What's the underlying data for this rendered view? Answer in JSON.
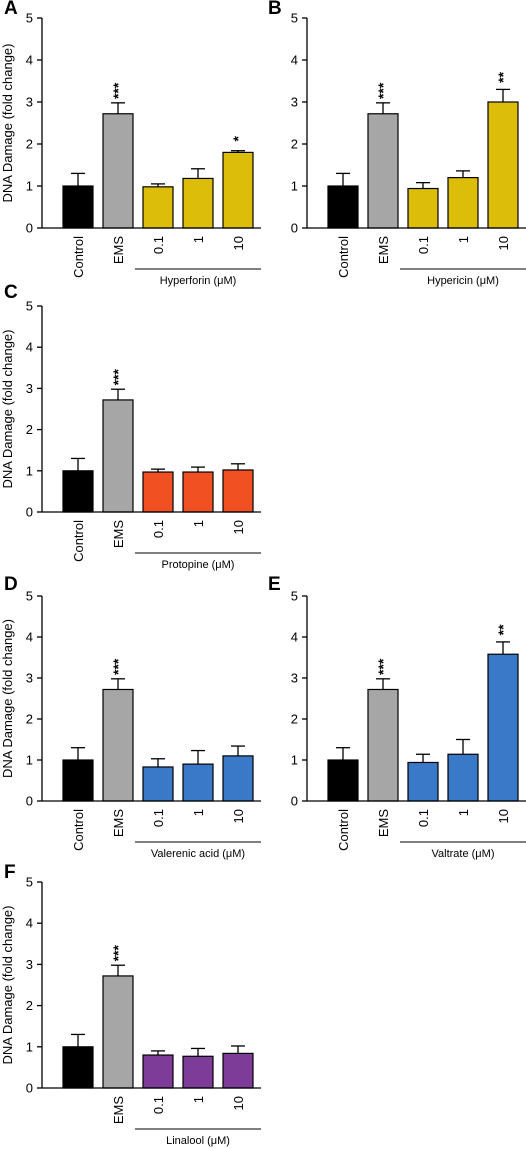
{
  "chart_data": [
    {
      "panel": "A",
      "type": "bar",
      "ylabel": "DNA Damage (fold change)",
      "ylim": [
        0,
        5
      ],
      "yticks": [
        "0",
        "1",
        "2",
        "3",
        "4",
        "5"
      ],
      "categories": [
        "Control",
        "EMS",
        "0.1",
        "1",
        "10"
      ],
      "values": [
        1.0,
        2.72,
        0.98,
        1.18,
        1.8
      ],
      "errors": [
        0.3,
        0.26,
        0.07,
        0.23,
        0.04
      ],
      "colors": [
        "#000000",
        "#a6a6a6",
        "#dcbe0a",
        "#dcbe0a",
        "#dcbe0a"
      ],
      "significance": [
        "",
        "***",
        "",
        "",
        "*"
      ],
      "group_label": "Hyperforin (μM)"
    },
    {
      "panel": "B",
      "type": "bar",
      "ylabel": "",
      "ylim": [
        0,
        5
      ],
      "yticks": [
        "0",
        "1",
        "2",
        "3",
        "4",
        "5"
      ],
      "categories": [
        "Control",
        "EMS",
        "0.1",
        "1",
        "10"
      ],
      "values": [
        1.0,
        2.72,
        0.94,
        1.2,
        3.0
      ],
      "errors": [
        0.3,
        0.26,
        0.14,
        0.16,
        0.3
      ],
      "colors": [
        "#000000",
        "#a6a6a6",
        "#dcbe0a",
        "#dcbe0a",
        "#dcbe0a"
      ],
      "significance": [
        "",
        "***",
        "",
        "",
        "**"
      ],
      "group_label": "Hypericin (μM)"
    },
    {
      "panel": "C",
      "type": "bar",
      "ylabel": "DNA Damage (fold change)",
      "ylim": [
        0,
        5
      ],
      "yticks": [
        "0",
        "1",
        "2",
        "3",
        "4",
        "5"
      ],
      "categories": [
        "Control",
        "EMS",
        "0.1",
        "1",
        "10"
      ],
      "values": [
        1.0,
        2.72,
        0.97,
        0.97,
        1.02
      ],
      "errors": [
        0.3,
        0.26,
        0.07,
        0.12,
        0.15
      ],
      "colors": [
        "#000000",
        "#a6a6a6",
        "#f05022",
        "#f05022",
        "#f05022"
      ],
      "significance": [
        "",
        "***",
        "",
        "",
        ""
      ],
      "group_label": "Protopine (μM)"
    },
    {
      "panel": "D",
      "type": "bar",
      "ylabel": "DNA Damage (fold change)",
      "ylim": [
        0,
        5
      ],
      "yticks": [
        "0",
        "1",
        "2",
        "3",
        "4",
        "5"
      ],
      "categories": [
        "Control",
        "EMS",
        "0.1",
        "1",
        "10"
      ],
      "values": [
        1.0,
        2.72,
        0.83,
        0.9,
        1.1
      ],
      "errors": [
        0.3,
        0.26,
        0.2,
        0.33,
        0.24
      ],
      "colors": [
        "#000000",
        "#a6a6a6",
        "#3a78c8",
        "#3a78c8",
        "#3a78c8"
      ],
      "significance": [
        "",
        "***",
        "",
        "",
        ""
      ],
      "group_label": "Valerenic acid (μM)"
    },
    {
      "panel": "E",
      "type": "bar",
      "ylabel": "",
      "ylim": [
        0,
        5
      ],
      "yticks": [
        "0",
        "1",
        "2",
        "3",
        "4",
        "5"
      ],
      "categories": [
        "Control",
        "EMS",
        "0.1",
        "1",
        "10"
      ],
      "values": [
        1.0,
        2.72,
        0.94,
        1.14,
        3.58
      ],
      "errors": [
        0.3,
        0.26,
        0.2,
        0.36,
        0.3
      ],
      "colors": [
        "#000000",
        "#a6a6a6",
        "#3a78c8",
        "#3a78c8",
        "#3a78c8"
      ],
      "significance": [
        "",
        "***",
        "",
        "",
        "**"
      ],
      "group_label": "Valtrate (μM)"
    },
    {
      "panel": "F",
      "type": "bar",
      "ylabel": "DNA Damage (fold change)",
      "ylim": [
        0,
        5
      ],
      "yticks": [
        "0",
        "1",
        "2",
        "3",
        "4",
        "5"
      ],
      "categories": [
        "",
        "EMS",
        "0.1",
        "1",
        "10"
      ],
      "values": [
        1.0,
        2.72,
        0.8,
        0.77,
        0.84
      ],
      "errors": [
        0.3,
        0.26,
        0.1,
        0.19,
        0.18
      ],
      "colors": [
        "#000000",
        "#a6a6a6",
        "#7c3c98",
        "#7c3c98",
        "#7c3c98"
      ],
      "significance": [
        "",
        "***",
        "",
        "",
        ""
      ],
      "group_label": "Linalool (μM)"
    }
  ]
}
